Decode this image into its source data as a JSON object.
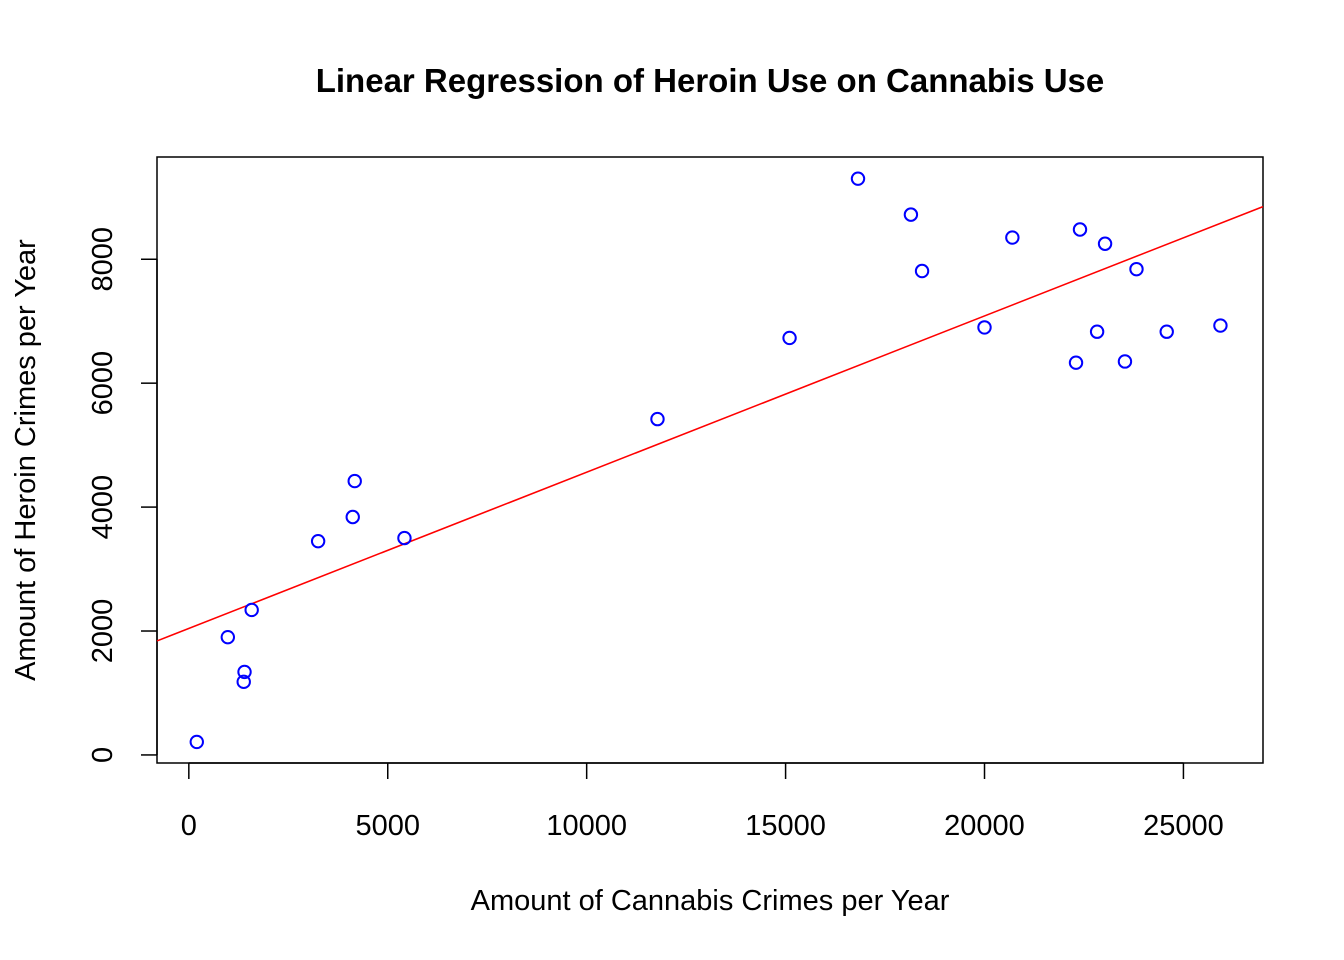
{
  "chart_data": {
    "type": "scatter",
    "title": "Linear Regression of Heroin Use on Cannabis Use",
    "xlabel": "Amount of Cannabis Crimes per Year",
    "ylabel": "Amount of Heroin Crimes per Year",
    "xlim": [
      -800,
      27000
    ],
    "ylim": [
      -130,
      9650
    ],
    "xticks": [
      0,
      5000,
      10000,
      15000,
      20000,
      25000
    ],
    "yticks": [
      0,
      2000,
      4000,
      6000,
      8000
    ],
    "point_color": "#0000ff",
    "line_color": "#ff0000",
    "points": [
      {
        "x": 200,
        "y": 210
      },
      {
        "x": 980,
        "y": 1900
      },
      {
        "x": 1380,
        "y": 1180
      },
      {
        "x": 1400,
        "y": 1340
      },
      {
        "x": 1580,
        "y": 2340
      },
      {
        "x": 3250,
        "y": 3450
      },
      {
        "x": 4120,
        "y": 3840
      },
      {
        "x": 4170,
        "y": 4420
      },
      {
        "x": 5420,
        "y": 3500
      },
      {
        "x": 11780,
        "y": 5420
      },
      {
        "x": 15100,
        "y": 6730
      },
      {
        "x": 16820,
        "y": 9300
      },
      {
        "x": 18150,
        "y": 8720
      },
      {
        "x": 18430,
        "y": 7810
      },
      {
        "x": 20000,
        "y": 6900
      },
      {
        "x": 20700,
        "y": 8350
      },
      {
        "x": 22300,
        "y": 6330
      },
      {
        "x": 22400,
        "y": 8480
      },
      {
        "x": 22830,
        "y": 6830
      },
      {
        "x": 23030,
        "y": 8250
      },
      {
        "x": 23530,
        "y": 6350
      },
      {
        "x": 23820,
        "y": 7840
      },
      {
        "x": 24580,
        "y": 6830
      },
      {
        "x": 25930,
        "y": 6930
      }
    ],
    "regression_line": {
      "x": [
        -800,
        27000
      ],
      "y": [
        1840,
        8850
      ]
    }
  }
}
